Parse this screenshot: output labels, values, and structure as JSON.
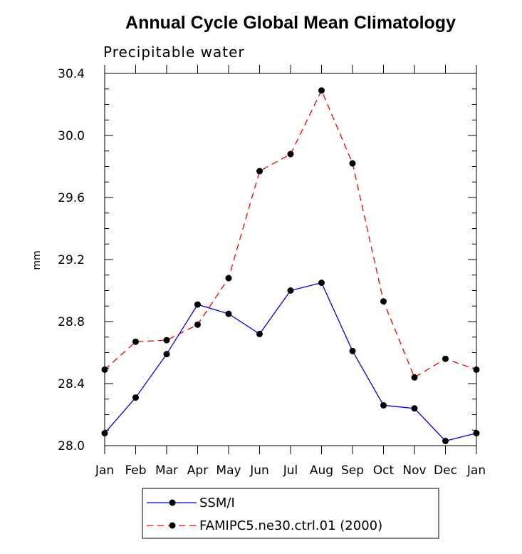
{
  "chart_data": {
    "type": "line",
    "title": "Annual Cycle Global Mean Climatology",
    "subtitle": "Precipitable water",
    "ylabel": "mm",
    "xlabel": "",
    "categories": [
      "Jan",
      "Feb",
      "Mar",
      "Apr",
      "May",
      "Jun",
      "Jul",
      "Aug",
      "Sep",
      "Oct",
      "Nov",
      "Dec",
      "Jan"
    ],
    "ylim": [
      28.0,
      30.4
    ],
    "yticks": [
      "28.0",
      "28.4",
      "28.8",
      "29.2",
      "29.6",
      "30.0",
      "30.4"
    ],
    "grid": false,
    "legend_position": "bottom",
    "series": [
      {
        "name": "SSM/I",
        "color": "#0000ff",
        "dash": "solid",
        "values": [
          28.08,
          28.31,
          28.59,
          28.91,
          28.85,
          28.72,
          29.0,
          29.05,
          28.61,
          28.26,
          28.24,
          28.03,
          28.08
        ]
      },
      {
        "name": "FAMIPC5.ne30.ctrl.01 (2000)",
        "color": "#ff0000",
        "dash": "dashed",
        "values": [
          28.49,
          28.67,
          28.68,
          28.78,
          29.08,
          29.77,
          29.88,
          30.29,
          29.82,
          28.93,
          28.44,
          28.56,
          28.49
        ]
      }
    ]
  }
}
